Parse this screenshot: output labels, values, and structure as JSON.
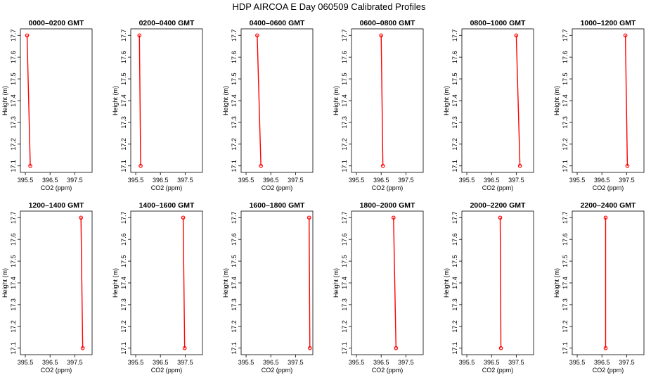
{
  "chart_data": {
    "type": "line",
    "title": "HDP  AIRCOA E  Day 060509  Calibrated Profiles",
    "xlabel": "CO2 (ppm)",
    "ylabel": "Height (m)",
    "xlim": [
      395.3,
      398.2
    ],
    "ylim": [
      17.07,
      17.73
    ],
    "x_ticks": [
      395.5,
      396.5,
      397.5
    ],
    "x_tick_labels": [
      "395.5",
      "396.5",
      "397.5"
    ],
    "y_ticks": [
      17.1,
      17.2,
      17.3,
      17.4,
      17.5,
      17.6,
      17.7
    ],
    "y_tick_labels": [
      "17.1",
      "17.2",
      "17.3",
      "17.4",
      "17.5",
      "17.6",
      "17.7"
    ],
    "grid": false,
    "series_color": "#ff0000",
    "panels": [
      {
        "title": "0000–0200 GMT",
        "points": [
          {
            "x": 395.57,
            "y": 17.7
          },
          {
            "x": 395.7,
            "y": 17.1
          }
        ]
      },
      {
        "title": "0200–0400 GMT",
        "points": [
          {
            "x": 395.65,
            "y": 17.7
          },
          {
            "x": 395.7,
            "y": 17.1
          }
        ]
      },
      {
        "title": "0400–0600 GMT",
        "points": [
          {
            "x": 395.95,
            "y": 17.7
          },
          {
            "x": 396.1,
            "y": 17.1
          }
        ]
      },
      {
        "title": "0600–0800 GMT",
        "points": [
          {
            "x": 396.5,
            "y": 17.7
          },
          {
            "x": 396.57,
            "y": 17.1
          }
        ]
      },
      {
        "title": "0800–1000 GMT",
        "points": [
          {
            "x": 397.5,
            "y": 17.7
          },
          {
            "x": 397.65,
            "y": 17.1
          }
        ]
      },
      {
        "title": "1000–1200 GMT",
        "points": [
          {
            "x": 397.45,
            "y": 17.7
          },
          {
            "x": 397.53,
            "y": 17.1
          }
        ]
      },
      {
        "title": "1200–1400 GMT",
        "points": [
          {
            "x": 397.75,
            "y": 17.7
          },
          {
            "x": 397.82,
            "y": 17.1
          }
        ]
      },
      {
        "title": "1400–1600 GMT",
        "points": [
          {
            "x": 397.42,
            "y": 17.7
          },
          {
            "x": 397.48,
            "y": 17.1
          }
        ]
      },
      {
        "title": "1600–1800 GMT",
        "points": [
          {
            "x": 398.05,
            "y": 17.7
          },
          {
            "x": 398.08,
            "y": 17.1
          }
        ]
      },
      {
        "title": "1800–2000 GMT",
        "points": [
          {
            "x": 397.0,
            "y": 17.7
          },
          {
            "x": 397.1,
            "y": 17.1
          }
        ]
      },
      {
        "title": "2000–2200 GMT",
        "points": [
          {
            "x": 396.85,
            "y": 17.7
          },
          {
            "x": 396.88,
            "y": 17.1
          }
        ]
      },
      {
        "title": "2200–2400 GMT",
        "points": [
          {
            "x": 396.65,
            "y": 17.7
          },
          {
            "x": 396.65,
            "y": 17.1
          }
        ]
      }
    ]
  }
}
